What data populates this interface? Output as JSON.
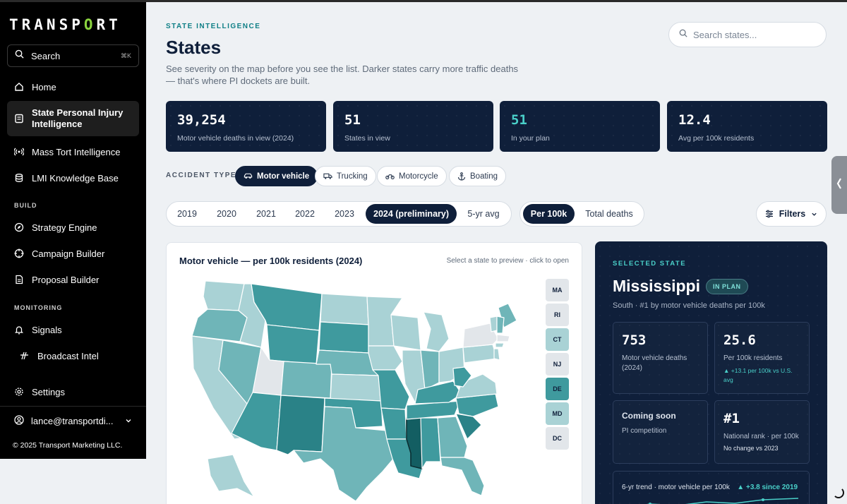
{
  "brand": {
    "logo_pre": "TRANSP",
    "logo_o": "O",
    "logo_post": "RT"
  },
  "sidebar": {
    "search_label": "Search",
    "search_shortcut": "⌘K",
    "items": [
      {
        "label": "Home",
        "icon": "home-icon"
      },
      {
        "label": "State Personal Injury Intelligence",
        "icon": "document-icon",
        "active": true
      },
      {
        "label": "Mass Tort Intelligence",
        "icon": "signal-icon"
      },
      {
        "label": "LMI Knowledge Base",
        "icon": "database-icon"
      }
    ],
    "section_build": "BUILD",
    "build_items": [
      {
        "label": "Strategy Engine",
        "icon": "compass-icon"
      },
      {
        "label": "Campaign Builder",
        "icon": "target-icon"
      },
      {
        "label": "Proposal Builder",
        "icon": "file-icon"
      }
    ],
    "section_monitoring": "MONITORING",
    "monitoring_items": [
      {
        "label": "Signals",
        "icon": "bell-icon"
      },
      {
        "label": "Broadcast Intel",
        "icon": "broadcast-icon"
      }
    ],
    "settings_label": "Settings",
    "user_email": "lance@transportdi...",
    "copyright": "© 2025 Transport Marketing LLC."
  },
  "header": {
    "eyebrow": "STATE INTELLIGENCE",
    "title": "States",
    "description": "See severity on the map before you see the list. Darker states carry more traffic deaths — that's where PI dockets are built.",
    "search_placeholder": "Search states..."
  },
  "stats": [
    {
      "value": "39,254",
      "label": "Motor vehicle deaths in view (2024)"
    },
    {
      "value": "51",
      "label": "States in view"
    },
    {
      "value": "51",
      "label": "In your plan"
    },
    {
      "value": "12.4",
      "label": "Avg per 100k residents"
    }
  ],
  "accident_type": {
    "label": "ACCIDENT TYPE",
    "options": [
      "Motor vehicle",
      "Trucking",
      "Motorcycle",
      "Boating"
    ],
    "selected": "Motor vehicle"
  },
  "years": {
    "options": [
      "2019",
      "2020",
      "2021",
      "2022",
      "2023",
      "2024 (preliminary)",
      "5-yr avg"
    ],
    "selected": "2024 (preliminary)"
  },
  "metric": {
    "options": [
      "Per 100k",
      "Total deaths"
    ],
    "selected": "Per 100k"
  },
  "filters_label": "Filters",
  "map": {
    "title": "Motor vehicle — per 100k residents (2024)",
    "hint": "Select a state to preview · click to open",
    "small_states": [
      "MA",
      "RI",
      "CT",
      "NJ",
      "DE",
      "MD",
      "DC"
    ],
    "colors": {
      "low": "#e2e6ea",
      "light": "#a9d2d5",
      "mid": "#6fb5b8",
      "high": "#3f9a9e",
      "darker": "#2a8287",
      "selected": "#135e62"
    }
  },
  "selected_state": {
    "eyebrow": "SELECTED STATE",
    "name": "Mississippi",
    "badge": "IN PLAN",
    "subtitle": "South · #1 by motor vehicle deaths per 100k",
    "metrics": {
      "deaths_value": "753",
      "deaths_label": "Motor vehicle deaths (2024)",
      "rate_value": "25.6",
      "rate_label": "Per 100k residents",
      "rate_delta": "▲ +13.1 per 100k vs U.S. avg",
      "soon_title": "Coming soon",
      "soon_label": "PI competition",
      "rank_value": "#1",
      "rank_label": "National rank · per 100k",
      "rank_sub": "No change vs 2023"
    },
    "trend_title": "6-yr trend · motor vehicle per 100k",
    "trend_delta": "▲ +3.8 since 2019"
  }
}
